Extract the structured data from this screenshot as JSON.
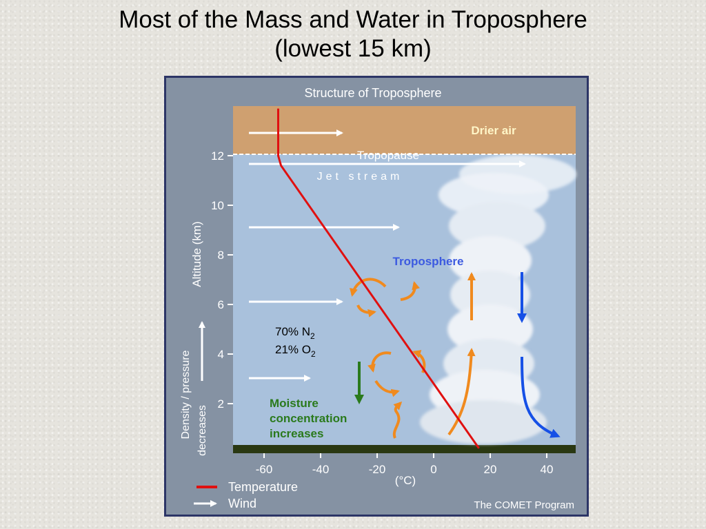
{
  "slide": {
    "title_line1": "Most of the Mass and Water in Troposphere",
    "title_line2": "(lowest 15 km)"
  },
  "figure": {
    "title": "Structure of Troposphere",
    "layers": {
      "drier_air": "Drier air",
      "tropopause": "Tropopause",
      "jet_stream": "Jet stream",
      "troposphere": "Troposphere"
    },
    "composition": {
      "n2": "70% N",
      "n2_sub": "2",
      "o2": "21% O",
      "o2_sub": "2"
    },
    "moisture": [
      "Moisture",
      "concentration",
      "increases"
    ],
    "y_axis": {
      "label": "Altitude (km)",
      "ticks": [
        "2",
        "4",
        "6",
        "8",
        "10",
        "12"
      ]
    },
    "x_axis": {
      "unit": "(°C)",
      "ticks": [
        "-60",
        "-40",
        "-20",
        "0",
        "20",
        "40"
      ]
    },
    "density_label": [
      "Density / pressure",
      "decreases"
    ],
    "legend": {
      "temperature": "Temperature",
      "wind": "Wind"
    },
    "credit": "The COMET Program",
    "colors": {
      "upper_layer": "#cfa070",
      "troposphere": "#a9c1dc",
      "ground": "#2a3812",
      "temperature": "#e01010",
      "circulation": "#f08a1e",
      "downdraft": "#1650e6",
      "moisture": "#2a7a1c",
      "troposphere_label": "#3c5ae0",
      "drier_air_label": "#fff6c8"
    },
    "icons": [
      "wind-arrow-icon",
      "circulation-arrow-icon",
      "updraft-arrow-icon",
      "downdraft-arrow-icon",
      "cloud-icon"
    ]
  }
}
